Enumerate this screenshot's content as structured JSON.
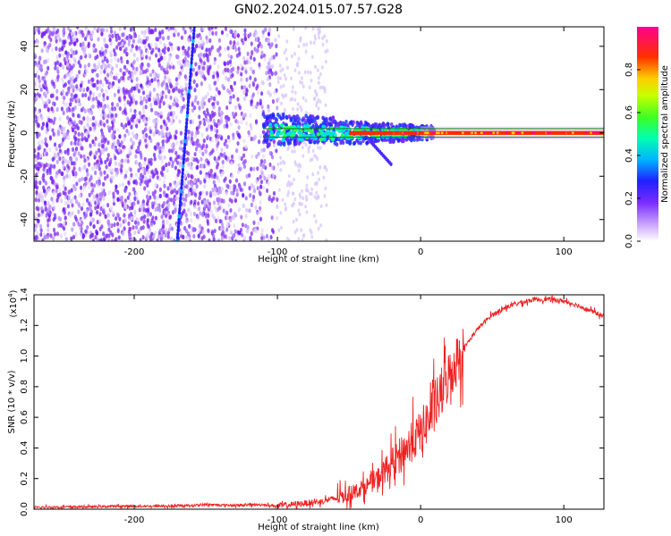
{
  "title": "GN02.2024.015.07.57.G28",
  "chart_data": [
    {
      "type": "heatmap",
      "xlabel": "Height of straight line (km)",
      "ylabel": "Frequency (Hz)",
      "xlim": [
        -270,
        128
      ],
      "ylim": [
        -50,
        49
      ],
      "xticks": [
        -200,
        -100,
        0,
        100
      ],
      "yticks": [
        -40,
        -20,
        0,
        20,
        40
      ],
      "colorbar": {
        "label": "Normalized spectral amplitude",
        "range": [
          0,
          1
        ],
        "ticks": [
          "0.0",
          "0.2",
          "0.4",
          "0.6",
          "0.8"
        ],
        "tick_values": [
          0.0,
          0.2,
          0.4,
          0.6,
          0.8
        ],
        "colors": [
          "#ffffff",
          "#9b40ff",
          "#2020ff",
          "#00c8ff",
          "#00ff7f",
          "#7fff00",
          "#ffd700",
          "#ff4000",
          "#ff0090"
        ]
      },
      "features": {
        "noise_region_x": [
          -270,
          -100
        ],
        "noise_density_boundary_x": -110,
        "streak_x_at_fmax": -158,
        "streak_x_at_fmin": -170,
        "carrier_start_x": -110,
        "carrier_frequency": 0,
        "carrier_lines_y": [
          2,
          -2
        ],
        "carrier_line_color": "#008000"
      }
    },
    {
      "type": "line",
      "xlabel": "Height of straight line (km)",
      "ylabel": "SNR (10 * v/v)",
      "y_multiplier": "(x10",
      "y_multiplier_exponent": "4",
      "y_multiplier_close": ")",
      "xlim": [
        -270,
        128
      ],
      "ylim": [
        0,
        1.4
      ],
      "xticks": [
        -200,
        -100,
        0,
        100
      ],
      "yticks": [
        "0.0",
        "0.2",
        "0.4",
        "0.6",
        "0.8",
        "1.0",
        "1.2",
        "1.4"
      ],
      "ytick_values": [
        0,
        0.2,
        0.4,
        0.6,
        0.8,
        1.0,
        1.2,
        1.4
      ],
      "series": [
        {
          "color": "#ee2222",
          "x": [
            -270,
            -250,
            -230,
            -210,
            -190,
            -170,
            -150,
            -130,
            -110,
            -100,
            -90,
            -80,
            -70,
            -60,
            -50,
            -40,
            -30,
            -20,
            -10,
            0,
            10,
            20,
            30,
            40,
            50,
            60,
            70,
            80,
            90,
            100,
            110,
            120,
            128
          ],
          "y": [
            0.01,
            0.015,
            0.015,
            0.02,
            0.02,
            0.02,
            0.03,
            0.025,
            0.03,
            0.02,
            0.03,
            0.04,
            0.05,
            0.07,
            0.1,
            0.14,
            0.2,
            0.3,
            0.4,
            0.5,
            0.66,
            0.88,
            1.05,
            1.18,
            1.27,
            1.32,
            1.35,
            1.37,
            1.37,
            1.36,
            1.33,
            1.29,
            1.26
          ]
        }
      ]
    }
  ]
}
